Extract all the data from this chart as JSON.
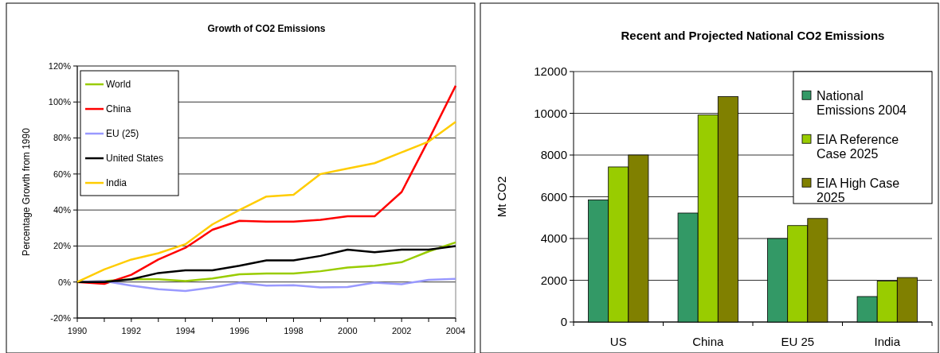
{
  "chart_data": [
    {
      "type": "line",
      "title": "Growth of CO2 Emissions",
      "ylabel": "Percentage Growth from 1990",
      "x": [
        1990,
        1991,
        1992,
        1993,
        1994,
        1995,
        1996,
        1997,
        1998,
        1999,
        2000,
        2001,
        2002,
        2003,
        2004
      ],
      "xlim": [
        1990,
        2004
      ],
      "xticks": [
        1990,
        {
          "value": 1991,
          "label": null
        },
        1992,
        {
          "value": 1993,
          "label": null
        },
        1994,
        {
          "value": 1995,
          "label": null
        },
        1996,
        {
          "value": 1997,
          "label": null
        },
        1998,
        {
          "value": 1999,
          "label": null
        },
        2000,
        {
          "value": 2001,
          "label": null
        },
        2002,
        {
          "value": 2003,
          "label": null
        },
        2004
      ],
      "ylim": [
        -20,
        120
      ],
      "yticks": [
        {
          "value": -20,
          "label": "-20%"
        },
        {
          "value": 0,
          "label": "0%"
        },
        {
          "value": 20,
          "label": "20%"
        },
        {
          "value": 40,
          "label": "40%"
        },
        {
          "value": 60,
          "label": "60%"
        },
        {
          "value": 80,
          "label": "80%"
        },
        {
          "value": 100,
          "label": "100%"
        },
        {
          "value": 120,
          "label": "120%"
        }
      ],
      "grid": "y",
      "legend": "top left",
      "series": [
        {
          "name": "World",
          "color": "#99cc00",
          "values": [
            0,
            0.5,
            1.5,
            1.5,
            0.5,
            2,
            4.3,
            4.7,
            4.7,
            6,
            8,
            9,
            11,
            17,
            22
          ]
        },
        {
          "name": "China",
          "color": "#ff0000",
          "values": [
            0,
            -1,
            4,
            12.5,
            19,
            29,
            34,
            33.5,
            33.5,
            34.5,
            36.5,
            36.5,
            50,
            79,
            109
          ]
        },
        {
          "name": "EU (25)",
          "color": "#9999ff",
          "values": [
            0,
            0.5,
            -2,
            -4,
            -5,
            -3,
            -0.5,
            -2,
            -1.8,
            -3,
            -2.8,
            -0.3,
            -1.2,
            1.2,
            1.7
          ]
        },
        {
          "name": "United States",
          "color": "#000000",
          "values": [
            0,
            0,
            1.5,
            5,
            6.5,
            6.5,
            9,
            12,
            12,
            14.5,
            18,
            16.5,
            18,
            18,
            20
          ]
        },
        {
          "name": "India",
          "color": "#ffcc00",
          "values": [
            0,
            7,
            12.5,
            16,
            21,
            32,
            40,
            47.5,
            48.5,
            60,
            63,
            66,
            72,
            78,
            89
          ]
        }
      ]
    },
    {
      "type": "bar",
      "title": "Recent and Projected National CO2 Emissions",
      "ylabel": "Mt CO2",
      "categories": [
        "US",
        "China",
        "EU 25",
        "India"
      ],
      "ylim": [
        0,
        12000
      ],
      "yticks": [
        0,
        2000,
        4000,
        6000,
        8000,
        10000,
        12000
      ],
      "grid": "y",
      "legend": "top right",
      "series": [
        {
          "name": "National Emissions 2004",
          "color": "#339966",
          "values": [
            5850,
            5220,
            4000,
            1220
          ]
        },
        {
          "name": "EIA Reference Case 2025",
          "color": "#99cc00",
          "values": [
            7430,
            9920,
            4620,
            1960
          ]
        },
        {
          "name": "EIA High Case 2025",
          "color": "#808000",
          "values": [
            8000,
            10800,
            4960,
            2130
          ]
        }
      ]
    }
  ]
}
